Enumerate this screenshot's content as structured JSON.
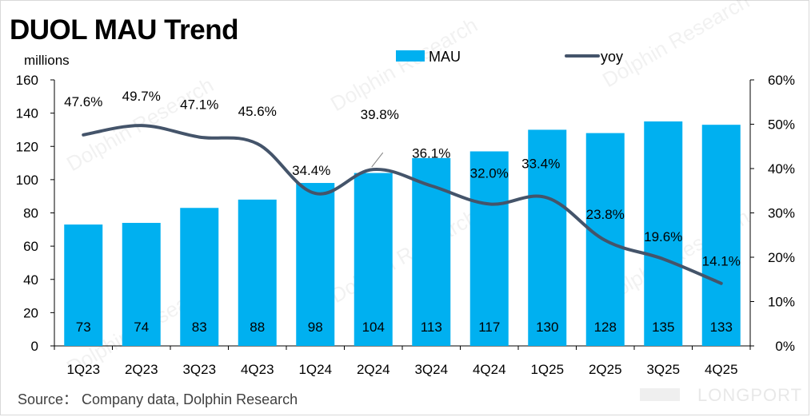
{
  "title": "DUOL MAU Trend",
  "unit_label": "millions",
  "source": "Source： Company data, Dolphin Research",
  "watermark": "Dolphin Research",
  "brand": "LONGPORT",
  "colors": {
    "bar": "#00B0F0",
    "line": "#44546A",
    "axis": "#000000"
  },
  "chart_data": {
    "type": "bar+line",
    "title": "DUOL MAU Trend",
    "ylabel": "millions",
    "categories": [
      "1Q23",
      "2Q23",
      "3Q23",
      "4Q23",
      "1Q24",
      "2Q24",
      "3Q24",
      "4Q24",
      "1Q25",
      "2Q25",
      "3Q25",
      "4Q25"
    ],
    "series": [
      {
        "name": "MAU",
        "type": "bar",
        "axis": "left",
        "values": [
          73,
          74,
          83,
          88,
          98,
          104,
          113,
          117,
          130,
          128,
          135,
          133
        ],
        "labels": [
          "73",
          "74",
          "83",
          "88",
          "98",
          "104",
          "113",
          "117",
          "130",
          "128",
          "135",
          "133"
        ]
      },
      {
        "name": "yoy",
        "type": "line",
        "axis": "right",
        "values": [
          47.6,
          49.7,
          47.1,
          45.6,
          34.4,
          39.8,
          36.1,
          32.0,
          33.4,
          23.8,
          19.6,
          14.1
        ],
        "labels": [
          "47.6%",
          "49.7%",
          "47.1%",
          "45.6%",
          "34.4%",
          "39.8%",
          "36.1%",
          "32.0%",
          "33.4%",
          "23.8%",
          "19.6%",
          "14.1%"
        ]
      }
    ],
    "left_axis": {
      "ylim": [
        0,
        160
      ],
      "ticks": [
        "0",
        "20",
        "40",
        "60",
        "80",
        "100",
        "120",
        "140",
        "160"
      ]
    },
    "right_axis": {
      "ylim": [
        0,
        60
      ],
      "ticks": [
        "0%",
        "10%",
        "20%",
        "30%",
        "40%",
        "50%",
        "60%"
      ]
    },
    "legend": {
      "position": "top",
      "entries": [
        "MAU",
        "yoy"
      ]
    },
    "grid": false
  }
}
